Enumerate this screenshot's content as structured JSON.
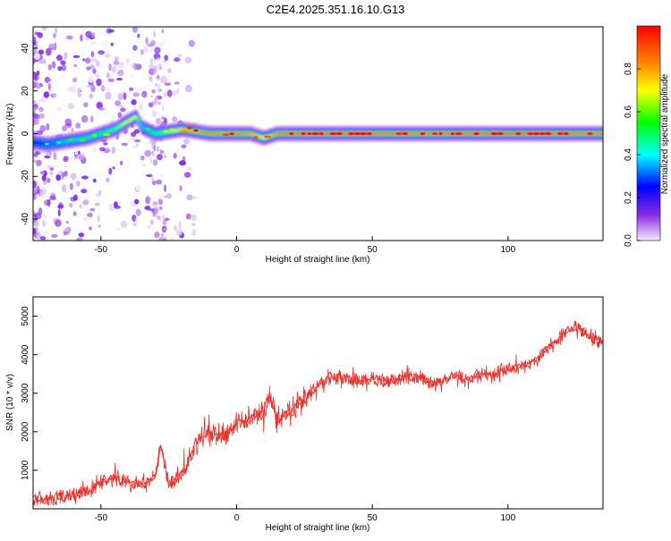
{
  "title": "C2E4.2025.351.16.10.G13",
  "colors": {
    "snr_line": "#e8312c",
    "ridge": "#ff1f1f",
    "frame": "#000000"
  },
  "chart_data": [
    {
      "type": "heatmap",
      "xlabel": "Height of straight line (km)",
      "ylabel": "Frequency (Hz)",
      "xlim": [
        -75,
        135
      ],
      "ylim": [
        -50,
        50
      ],
      "x_ticks": [
        -50,
        0,
        50,
        100
      ],
      "y_ticks": [
        -40,
        -20,
        0,
        20,
        40
      ],
      "colorbar": {
        "label": "Normalized spectral amplitude",
        "range": [
          0,
          1
        ],
        "ticks": [
          0,
          0.2,
          0.4,
          0.6,
          0.8
        ],
        "colormap": [
          "#f5eaff",
          "#8a2be2",
          "#0000ff",
          "#00ffff",
          "#00ff00",
          "#ffff00",
          "#ff8c00",
          "#ff0000"
        ]
      },
      "ridge": {
        "x": [
          -75,
          -70,
          -65,
          -60,
          -55,
          -50,
          -45,
          -40,
          -37,
          -35,
          -30,
          -25,
          -20,
          -15,
          -10,
          -5,
          0,
          5,
          10,
          15,
          20,
          40,
          60,
          80,
          100,
          120,
          135
        ],
        "y": [
          -4,
          -5,
          -4,
          -3,
          -2,
          0,
          2,
          6,
          8,
          3,
          0,
          1,
          2,
          1,
          0,
          0,
          0,
          0,
          -2,
          0,
          0,
          0,
          0,
          0,
          0,
          0,
          0
        ]
      },
      "ridge_amplitude": [
        0.3,
        0.35,
        0.4,
        0.45,
        0.5,
        0.55,
        0.6,
        0.75,
        0.7,
        0.4,
        0.55,
        0.65,
        0.8,
        0.85,
        0.9,
        0.85,
        0.9,
        0.85,
        0.7,
        0.9,
        0.95,
        0.95,
        0.9,
        0.92,
        0.95,
        0.93,
        0.9
      ]
    },
    {
      "type": "line",
      "xlabel": "Height of straight line (km)",
      "ylabel": "SNR (10 * v/v)",
      "xlim": [
        -75,
        135
      ],
      "ylim": [
        0,
        5500
      ],
      "x_ticks": [
        -50,
        0,
        50,
        100
      ],
      "y_ticks": [
        1000,
        2000,
        3000,
        4000,
        5000
      ],
      "series": [
        {
          "x": [
            -75,
            -70,
            -65,
            -60,
            -55,
            -50,
            -45,
            -40,
            -35,
            -30,
            -28,
            -25,
            -20,
            -15,
            -10,
            -5,
            0,
            5,
            10,
            12,
            15,
            20,
            25,
            30,
            35,
            40,
            45,
            50,
            55,
            60,
            65,
            70,
            75,
            80,
            85,
            90,
            95,
            100,
            105,
            110,
            115,
            120,
            125,
            130,
            135
          ],
          "values": [
            300,
            250,
            300,
            350,
            450,
            700,
            800,
            700,
            600,
            900,
            1700,
            600,
            900,
            1700,
            2000,
            1900,
            2200,
            2400,
            2500,
            3000,
            2300,
            2500,
            2800,
            3200,
            3450,
            3400,
            3300,
            3350,
            3300,
            3400,
            3450,
            3350,
            3250,
            3450,
            3350,
            3500,
            3500,
            3600,
            3700,
            3800,
            4200,
            4500,
            4700,
            4500,
            4300
          ]
        }
      ]
    }
  ]
}
